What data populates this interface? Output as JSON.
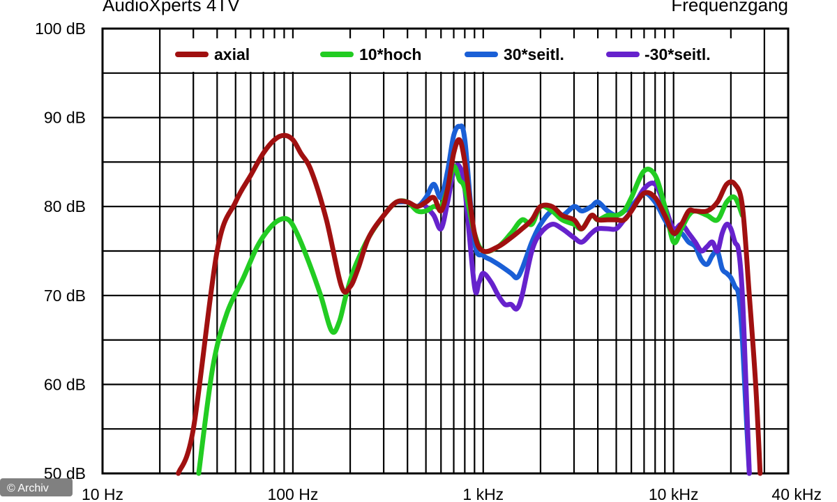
{
  "header": {
    "left_title": "AudioXperts 4TV",
    "right_title": "Frequenzgang"
  },
  "credit": "© Archiv",
  "chart_data": {
    "type": "line",
    "title": "",
    "xlabel": "",
    "ylabel": "",
    "x_scale": "log",
    "xlim": [
      10,
      40000
    ],
    "ylim": [
      50,
      100
    ],
    "grid": true,
    "legend_position": "top",
    "x_ticks": [
      {
        "value": 10,
        "label": "10 Hz"
      },
      {
        "value": 100,
        "label": "100 Hz"
      },
      {
        "value": 1000,
        "label": "1 kHz"
      },
      {
        "value": 10000,
        "label": "10 kHz"
      },
      {
        "value": 40000,
        "label": "40 kHz"
      }
    ],
    "y_ticks": [
      {
        "value": 100,
        "label": "100 dB"
      },
      {
        "value": 90,
        "label": "90 dB"
      },
      {
        "value": 80,
        "label": "80 dB"
      },
      {
        "value": 70,
        "label": "70 dB"
      },
      {
        "value": 60,
        "label": "60 dB"
      },
      {
        "value": 50,
        "label": "50 dB"
      }
    ],
    "series": [
      {
        "name": "axial",
        "color": "#a01010",
        "points": [
          [
            25,
            50
          ],
          [
            30,
            55
          ],
          [
            40,
            75
          ],
          [
            50,
            80.5
          ],
          [
            60,
            83.5
          ],
          [
            70,
            86
          ],
          [
            80,
            87.5
          ],
          [
            90,
            88
          ],
          [
            100,
            87.5
          ],
          [
            110,
            86
          ],
          [
            125,
            84
          ],
          [
            150,
            78.5
          ],
          [
            180,
            71
          ],
          [
            200,
            71
          ],
          [
            220,
            73
          ],
          [
            250,
            76.5
          ],
          [
            300,
            79
          ],
          [
            350,
            80.5
          ],
          [
            400,
            80.5
          ],
          [
            450,
            80
          ],
          [
            500,
            80.5
          ],
          [
            550,
            81
          ],
          [
            600,
            79.5
          ],
          [
            650,
            82
          ],
          [
            700,
            86
          ],
          [
            750,
            87.5
          ],
          [
            800,
            85
          ],
          [
            900,
            77
          ],
          [
            1000,
            75
          ],
          [
            1200,
            75.5
          ],
          [
            1400,
            76.5
          ],
          [
            1600,
            77.5
          ],
          [
            1800,
            78.5
          ],
          [
            2000,
            80
          ],
          [
            2300,
            80
          ],
          [
            2600,
            79
          ],
          [
            3000,
            78.5
          ],
          [
            3300,
            77.5
          ],
          [
            3700,
            79
          ],
          [
            4000,
            78.5
          ],
          [
            4500,
            78.5
          ],
          [
            5000,
            78.5
          ],
          [
            5500,
            78.5
          ],
          [
            6000,
            79.5
          ],
          [
            7000,
            81.5
          ],
          [
            8000,
            81
          ],
          [
            9000,
            79
          ],
          [
            10000,
            77
          ],
          [
            11000,
            78
          ],
          [
            12000,
            79.5
          ],
          [
            13000,
            79.5
          ],
          [
            15000,
            79.5
          ],
          [
            17000,
            80.5
          ],
          [
            19000,
            82.5
          ],
          [
            21000,
            82.5
          ],
          [
            23000,
            80
          ],
          [
            25000,
            70
          ],
          [
            27000,
            60
          ],
          [
            28500,
            50
          ]
        ]
      },
      {
        "name": "10*hoch",
        "color": "#22cc22",
        "points": [
          [
            32,
            50
          ],
          [
            38,
            62
          ],
          [
            45,
            68
          ],
          [
            55,
            72
          ],
          [
            65,
            75.5
          ],
          [
            75,
            77.5
          ],
          [
            85,
            78.5
          ],
          [
            95,
            78.5
          ],
          [
            105,
            77
          ],
          [
            120,
            74
          ],
          [
            140,
            70
          ],
          [
            160,
            66
          ],
          [
            175,
            67
          ],
          [
            190,
            70
          ],
          [
            210,
            73
          ],
          [
            250,
            76.5
          ],
          [
            300,
            79
          ],
          [
            350,
            80.5
          ],
          [
            400,
            80.5
          ],
          [
            450,
            79.5
          ],
          [
            500,
            79.5
          ],
          [
            550,
            80
          ],
          [
            600,
            80
          ],
          [
            650,
            82
          ],
          [
            700,
            84.5
          ],
          [
            750,
            83
          ],
          [
            800,
            82
          ],
          [
            900,
            77
          ],
          [
            1000,
            75
          ],
          [
            1200,
            75.5
          ],
          [
            1400,
            77
          ],
          [
            1600,
            78.5
          ],
          [
            1800,
            78
          ],
          [
            2000,
            80
          ],
          [
            2300,
            79.5
          ],
          [
            2600,
            78.5
          ],
          [
            3000,
            78
          ],
          [
            3300,
            77.5
          ],
          [
            3700,
            79
          ],
          [
            4000,
            78.5
          ],
          [
            4500,
            79
          ],
          [
            5000,
            79
          ],
          [
            5500,
            79.5
          ],
          [
            6000,
            81
          ],
          [
            7000,
            84
          ],
          [
            8000,
            83.5
          ],
          [
            9000,
            80
          ],
          [
            10000,
            76
          ],
          [
            11000,
            77.5
          ],
          [
            12000,
            79
          ],
          [
            13000,
            79.5
          ],
          [
            15000,
            79
          ],
          [
            17000,
            78.5
          ],
          [
            19000,
            80.5
          ],
          [
            21000,
            81
          ],
          [
            23000,
            79
          ]
        ]
      },
      {
        "name": "30*seitl.",
        "color": "#1a5fd6",
        "points": [
          [
            350,
            80.5
          ],
          [
            400,
            80.5
          ],
          [
            450,
            80
          ],
          [
            500,
            81
          ],
          [
            550,
            82.5
          ],
          [
            600,
            81
          ],
          [
            650,
            84
          ],
          [
            700,
            88
          ],
          [
            750,
            89
          ],
          [
            800,
            87.5
          ],
          [
            900,
            76
          ],
          [
            1000,
            74.5
          ],
          [
            1100,
            74
          ],
          [
            1200,
            73.5
          ],
          [
            1400,
            72.5
          ],
          [
            1500,
            72
          ],
          [
            1600,
            73
          ],
          [
            1800,
            76
          ],
          [
            2000,
            78
          ],
          [
            2300,
            79.5
          ],
          [
            2600,
            79
          ],
          [
            3000,
            80
          ],
          [
            3300,
            79.5
          ],
          [
            3700,
            80
          ],
          [
            4000,
            80.5
          ],
          [
            4500,
            79.5
          ],
          [
            5000,
            79
          ],
          [
            5500,
            79.5
          ],
          [
            6000,
            80
          ],
          [
            7000,
            81.5
          ],
          [
            8000,
            80.5
          ],
          [
            9000,
            78.5
          ],
          [
            10000,
            77
          ],
          [
            11000,
            77
          ],
          [
            12000,
            76
          ],
          [
            13000,
            75.5
          ],
          [
            14000,
            74
          ],
          [
            15000,
            73.5
          ],
          [
            16000,
            74.5
          ],
          [
            17000,
            75
          ],
          [
            18000,
            73
          ],
          [
            19000,
            72.5
          ],
          [
            20000,
            72
          ],
          [
            21000,
            71
          ],
          [
            22000,
            70
          ],
          [
            23000,
            65
          ],
          [
            24000,
            57
          ],
          [
            25000,
            50
          ]
        ]
      },
      {
        "name": "-30*seitl.",
        "color": "#6622cc",
        "points": [
          [
            500,
            80
          ],
          [
            550,
            79
          ],
          [
            600,
            77.5
          ],
          [
            650,
            80.5
          ],
          [
            700,
            84
          ],
          [
            750,
            84.5
          ],
          [
            800,
            82
          ],
          [
            900,
            71
          ],
          [
            950,
            71.5
          ],
          [
            1000,
            72.5
          ],
          [
            1100,
            71.5
          ],
          [
            1200,
            70
          ],
          [
            1300,
            69
          ],
          [
            1400,
            69
          ],
          [
            1500,
            68.5
          ],
          [
            1600,
            70
          ],
          [
            1800,
            75
          ],
          [
            2000,
            77
          ],
          [
            2300,
            78
          ],
          [
            2600,
            77.5
          ],
          [
            3000,
            76.5
          ],
          [
            3300,
            76
          ],
          [
            3700,
            77
          ],
          [
            4000,
            77.5
          ],
          [
            4500,
            77.5
          ],
          [
            5000,
            77.5
          ],
          [
            5500,
            78.5
          ],
          [
            6000,
            79.5
          ],
          [
            7000,
            82
          ],
          [
            8000,
            82.5
          ],
          [
            9000,
            80
          ],
          [
            10000,
            77.5
          ],
          [
            11000,
            78
          ],
          [
            12000,
            77
          ],
          [
            13000,
            76
          ],
          [
            14000,
            75
          ],
          [
            15000,
            75.5
          ],
          [
            16000,
            76
          ],
          [
            17000,
            75
          ],
          [
            18000,
            77
          ],
          [
            19000,
            78
          ],
          [
            20000,
            77.5
          ],
          [
            21000,
            76
          ],
          [
            22000,
            75
          ],
          [
            23000,
            70
          ],
          [
            24000,
            60
          ],
          [
            25000,
            50
          ]
        ]
      }
    ]
  }
}
